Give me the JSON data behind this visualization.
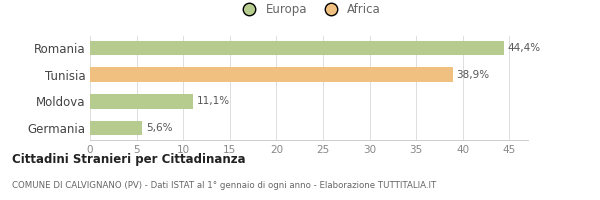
{
  "categories": [
    "Romania",
    "Tunisia",
    "Moldova",
    "Germania"
  ],
  "values": [
    44.4,
    38.9,
    11.1,
    5.6
  ],
  "labels": [
    "44,4%",
    "38,9%",
    "11,1%",
    "5,6%"
  ],
  "colors": [
    "#b5cc8e",
    "#f0c080",
    "#b5cc8e",
    "#b5cc8e"
  ],
  "legend_items": [
    {
      "label": "Europa",
      "color": "#b5cc8e"
    },
    {
      "label": "Africa",
      "color": "#f0c080"
    }
  ],
  "xlim": [
    0,
    47
  ],
  "xticks": [
    0,
    5,
    10,
    15,
    20,
    25,
    30,
    35,
    40,
    45
  ],
  "title_bold": "Cittadini Stranieri per Cittadinanza",
  "title_sub": "COMUNE DI CALVIGNANO (PV) - Dati ISTAT al 1° gennaio di ogni anno - Elaborazione TUTTITALIA.IT",
  "bg_color": "#ffffff",
  "bar_height": 0.55
}
